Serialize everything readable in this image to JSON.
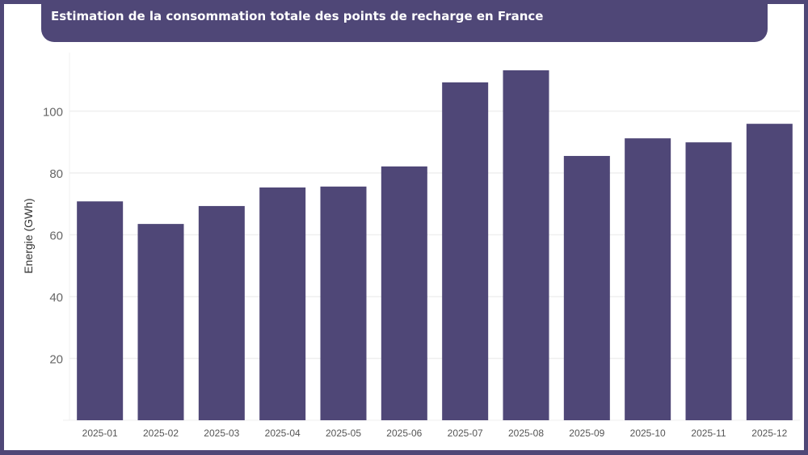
{
  "chart_data": {
    "type": "bar",
    "title": "Estimation de la consommation totale des points de recharge en France",
    "xlabel": "",
    "ylabel": "Energie (GWh)",
    "categories": [
      "2025-01",
      "2025-02",
      "2025-03",
      "2025-04",
      "2025-05",
      "2025-06",
      "2025-07",
      "2025-08",
      "2025-09",
      "2025-10",
      "2025-11",
      "2025-12"
    ],
    "values": [
      70.8,
      63.5,
      69.3,
      75.3,
      75.6,
      82.1,
      109.3,
      113.2,
      85.5,
      91.2,
      89.9,
      95.9
    ],
    "yticks": [
      20,
      40,
      60,
      80,
      100
    ],
    "ylim": [
      0,
      119
    ],
    "grid": true,
    "bar_color": "#4f4777",
    "frame_color": "#4f4777"
  }
}
